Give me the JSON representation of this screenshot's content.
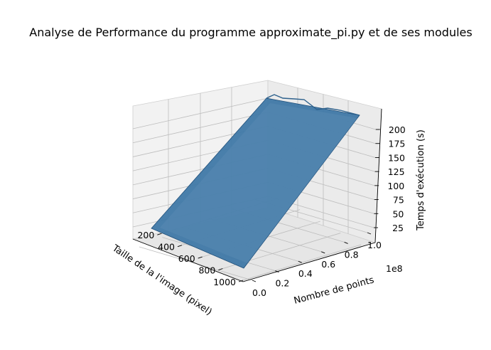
{
  "chart_data": {
    "type": "surface3d",
    "title": "Analyse de Performance du programme approximate_pi.py et de ses modules",
    "xlabel": "Taille de la l'image (pixel)",
    "ylabel": "Nombre de points",
    "zlabel": "Temps d'exécution (s)",
    "x_ticks": [
      "200",
      "400",
      "600",
      "800",
      "1000"
    ],
    "y_ticks": [
      "0.0",
      "0.2",
      "0.4",
      "0.6",
      "0.8",
      "1.0"
    ],
    "y_offset_label": "1e8",
    "z_ticks": [
      "25",
      "50",
      "75",
      "100",
      "125",
      "150",
      "175",
      "200"
    ],
    "x": [
      100,
      1000
    ],
    "y": [
      1000000,
      100000000
    ],
    "z": [
      [
        2,
        210
      ],
      [
        2,
        200
      ]
    ],
    "xlim": [
      100,
      1000
    ],
    "ylim": [
      0,
      100000000
    ],
    "zlim": [
      0,
      220
    ],
    "grid": true,
    "colors": {
      "surface": "#3f78a6",
      "pane": "#ececec"
    }
  }
}
